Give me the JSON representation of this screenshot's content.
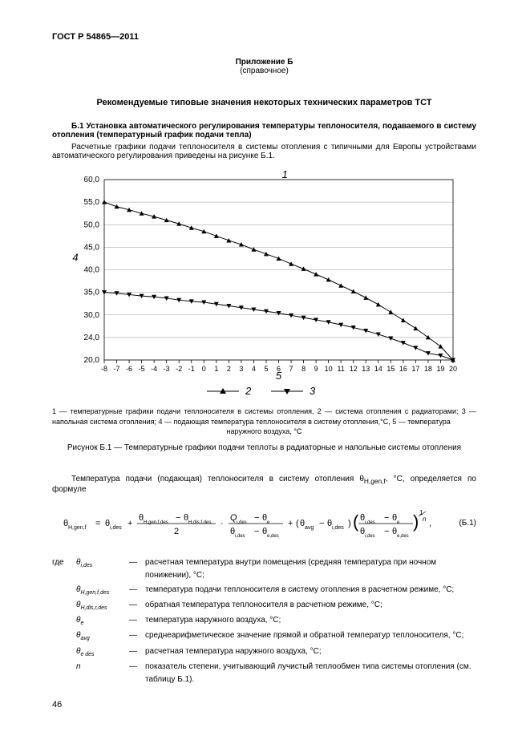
{
  "doc_id": "ГОСТ Р 54865—2011",
  "appendix_label": "Приложение Б",
  "appendix_type": "(справочное)",
  "title": "Рекомендуемые типовые значения некоторых технических параметров ТСТ",
  "b1_lead": "Б.1 Установка автоматического регулирования температуры теплоносителя, подаваемого в систему отопления (температурный график подачи тепла)",
  "b1_body": "Расчетные графики подачи теплоносителя в системы отопления с типичными для Европы устройствами автоматического регулирования приведены на рисунке Б.1.",
  "chart": {
    "type": "line",
    "background_color": "#ffffff",
    "grid_color": "#9a9a9a",
    "line_color": "#000000",
    "marker_color": "#000000",
    "marker_size": 3,
    "line_width": 1,
    "x": [
      -8,
      -7,
      -6,
      -5,
      -4,
      -3,
      -2,
      -1,
      0,
      1,
      2,
      3,
      4,
      5,
      6,
      7,
      8,
      9,
      10,
      11,
      12,
      13,
      14,
      15,
      16,
      17,
      18,
      19,
      20
    ],
    "y_top": [
      55,
      54,
      53.3,
      52.5,
      51.8,
      51,
      50.2,
      49.3,
      48.5,
      47.5,
      46.5,
      45.6,
      44.5,
      43.5,
      42.5,
      41.3,
      40.2,
      39,
      37.8,
      36.5,
      35.2,
      33.8,
      32.3,
      30.6,
      28.8,
      27,
      25,
      23,
      20
    ],
    "y_bottom": [
      35,
      34.8,
      34.5,
      34.2,
      34,
      33.7,
      33.3,
      33,
      32.8,
      32.4,
      32,
      31.6,
      31.2,
      30.8,
      30.4,
      29.9,
      29.4,
      28.9,
      28.4,
      27.8,
      27.2,
      26.5,
      25.7,
      24.8,
      23.8,
      22.7,
      21.5,
      21,
      20
    ],
    "ylim": [
      20,
      60
    ],
    "ytick_step": 5,
    "yticks_special_24": true,
    "xticks": [
      -8,
      -7,
      -6,
      -5,
      -4,
      -3,
      -2,
      -1,
      0,
      1,
      2,
      3,
      4,
      5,
      6,
      7,
      8,
      9,
      10,
      11,
      12,
      13,
      14,
      15,
      16,
      17,
      18,
      19,
      20
    ],
    "annotation_1": "1",
    "annotation_4": "4",
    "annotation_5": "5",
    "legend_2": "2",
    "legend_3": "3",
    "tick_fontsize": 10
  },
  "caption_small_1": "1 — температурные графики подачи теплоносителя в системы отопления, 2 — система отопления с радиаторами;",
  "caption_small_2": "3 — напольная система отопления; 4 — подающая температура теплоносителя в систему отопления,°С, 5 — температура",
  "caption_small_3": "наружного воздуха, °С",
  "fig_title": "Рисунок Б.1 — Температурные графики подачи теплоты в радиаторные и напольные системы отопления",
  "para_intro_1": "Температура подачи (подающая) теплоносителя в систему отопления θ",
  "para_intro_sub": "H,gen,f",
  "para_intro_2": ", °С, определяется по формуле",
  "formula": {
    "lhs_sym": "θ",
    "lhs_sub": "H,gen,f",
    "t1_sym": "θ",
    "t1_sub": "i,des",
    "frac1_num_a": "θ",
    "frac1_num_a_sub": "H,gen,f,des",
    "frac1_num_b": "θ",
    "frac1_num_b_sub": "H,dis,f,des",
    "frac1_den": "2",
    "frac2_num_a": "Q",
    "frac2_num_a_sub": "i,des",
    "frac2_num_b": "θ",
    "frac2_num_b_sub": "e",
    "frac2_den_a": "θ",
    "frac2_den_a_sub": "i,des",
    "frac2_den_b": "θ",
    "frac2_den_b_sub": "e,des",
    "par_a": "θ",
    "par_a_sub": "avg",
    "par_b": "θ",
    "par_b_sub": "i,des",
    "frac3_num_a": "θ",
    "frac3_num_a_sub": "i,des",
    "frac3_num_b": "θ",
    "frac3_num_b_sub": "e",
    "frac3_den_a": "θ",
    "frac3_den_a_sub": "i,des",
    "frac3_den_b": "θ",
    "frac3_den_b_sub": "e,des",
    "exp_num": "1",
    "exp_den": "n",
    "number": "(Б.1)"
  },
  "where_label": "где",
  "defs": [
    {
      "sym": "θ",
      "sub": "i,des",
      "dash": "—",
      "text": "расчетная температура внутри помещения (средняя температура при ночном понижении), °С;"
    },
    {
      "sym": "θ",
      "sub": "H,gen,f,des",
      "dash": "—",
      "text": "температура подачи теплоносителя в систему отопления в расчетном режиме, °С;"
    },
    {
      "sym": "θ",
      "sub": "H,dis,r,des",
      "dash": "—",
      "text": "обратная температура теплоносителя в расчетном режиме, °С;"
    },
    {
      "sym": "θ",
      "sub": "e",
      "dash": "—",
      "text": "температура наружного воздуха, °С;"
    },
    {
      "sym": "θ",
      "sub": "avg",
      "dash": "—",
      "text": "среднеарифметическое значение прямой и обратной температур теплоносителя, °С;"
    },
    {
      "sym": "θ",
      "sub": "e des",
      "dash": "—",
      "text": "расчетная температура наружного воздуха, °С;"
    },
    {
      "sym": "n",
      "sub": "",
      "dash": "—",
      "text": "показатель степени, учитывающий лучистый теплообмен типа системы отопления (см. табли­цу Б.1)."
    }
  ],
  "page_number": "46"
}
